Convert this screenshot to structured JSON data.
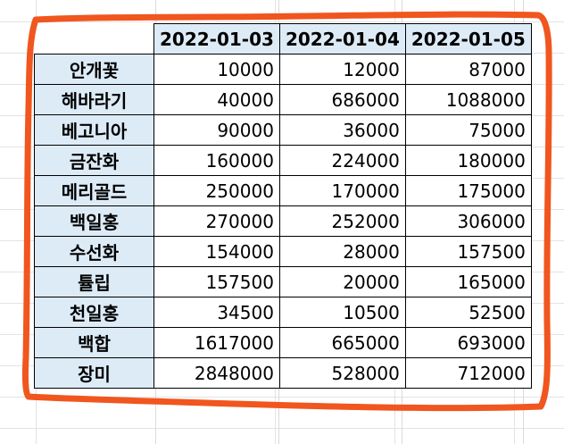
{
  "table": {
    "header": [
      "",
      "2022-01-03",
      "2022-01-04",
      "2022-01-05"
    ],
    "rows": [
      {
        "label": "안개꽃",
        "values": [
          "10000",
          "12000",
          "87000"
        ]
      },
      {
        "label": "해바라기",
        "values": [
          "40000",
          "686000",
          "1088000"
        ]
      },
      {
        "label": "베고니아",
        "values": [
          "90000",
          "36000",
          "75000"
        ]
      },
      {
        "label": "금잔화",
        "values": [
          "160000",
          "224000",
          "180000"
        ]
      },
      {
        "label": "메리골드",
        "values": [
          "250000",
          "170000",
          "175000"
        ]
      },
      {
        "label": "백일홍",
        "values": [
          "270000",
          "252000",
          "306000"
        ]
      },
      {
        "label": "수선화",
        "values": [
          "154000",
          "28000",
          "157500"
        ]
      },
      {
        "label": "튤립",
        "values": [
          "157500",
          "20000",
          "165000"
        ]
      },
      {
        "label": "천일홍",
        "values": [
          "34500",
          "10500",
          "52500"
        ]
      },
      {
        "label": "백합",
        "values": [
          "1617000",
          "665000",
          "693000"
        ]
      },
      {
        "label": "장미",
        "values": [
          "2848000",
          "528000",
          "712000"
        ]
      }
    ]
  },
  "colors": {
    "header_fill": "#ddebf7",
    "annotation_stroke": "#f0561e",
    "gridline": "#e3e3e3"
  }
}
